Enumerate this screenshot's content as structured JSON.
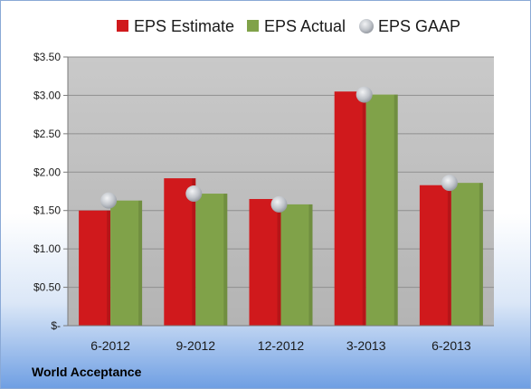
{
  "chart_data": {
    "type": "bar",
    "categories": [
      "6-2012",
      "9-2012",
      "12-2012",
      "3-2013",
      "6-2013"
    ],
    "series": [
      {
        "name": "EPS Estimate",
        "values": [
          1.5,
          1.92,
          1.65,
          3.05,
          1.83
        ],
        "color": "#d0191c",
        "style": "bar"
      },
      {
        "name": "EPS Actual",
        "values": [
          1.63,
          1.72,
          1.58,
          3.01,
          1.86
        ],
        "color": "#80a249",
        "style": "bar"
      },
      {
        "name": "EPS GAAP",
        "values": [
          1.63,
          1.72,
          1.58,
          3.01,
          1.86
        ],
        "color": "#b9bdc4",
        "style": "marker"
      }
    ],
    "yticks": [
      "$-",
      "$0.50",
      "$1.00",
      "$1.50",
      "$2.00",
      "$2.50",
      "$3.00",
      "$3.50"
    ],
    "ylim": [
      0,
      3.5
    ],
    "grid": true,
    "legend": "top"
  },
  "footer": "World Acceptance"
}
